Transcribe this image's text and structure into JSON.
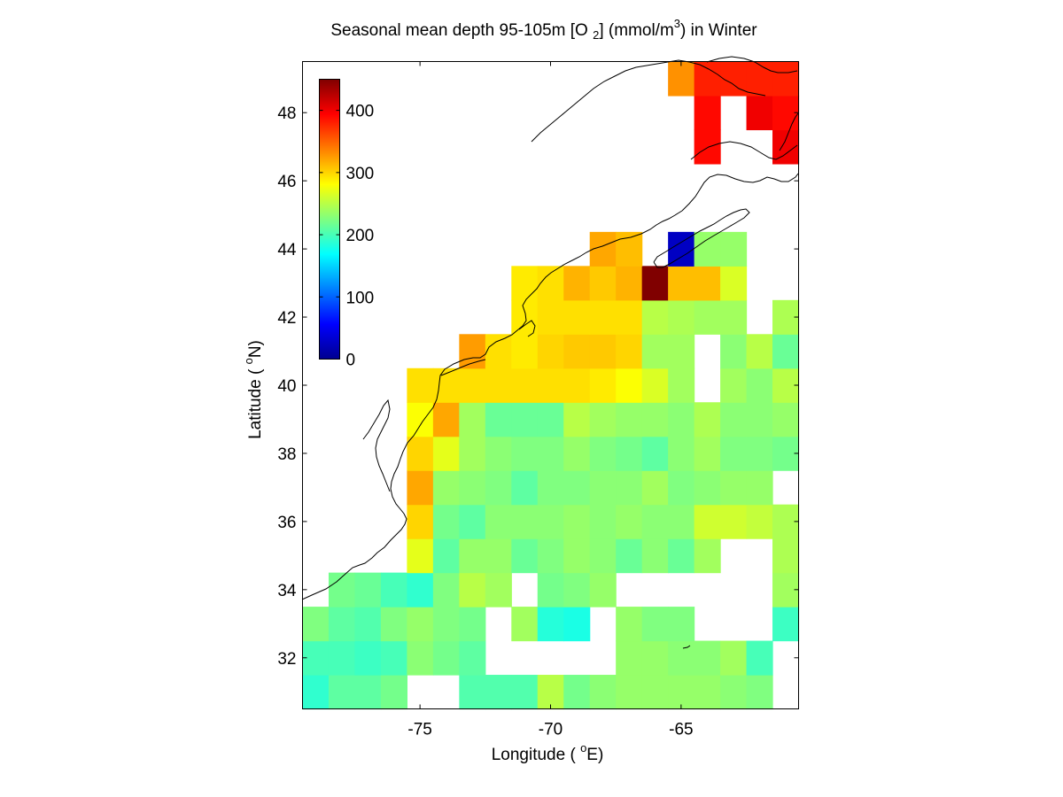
{
  "chart_data": {
    "type": "heatmap",
    "title": {
      "prefix": "Seasonal mean depth 95-105m [O ",
      "sub": "2",
      "middle": "] (mmol/m",
      "sup": "3",
      "suffix": ") in  Winter"
    },
    "xlabel": {
      "prefix": "Longitude ( ",
      "sup": "o",
      "suffix": "E)"
    },
    "ylabel": {
      "prefix": "Latitude ( ",
      "sup": "o",
      "suffix": "N)"
    },
    "xlim": [
      -79.5,
      -60.5
    ],
    "ylim": [
      30.5,
      49.5
    ],
    "x_ticks": [
      -75,
      -70,
      -65
    ],
    "y_ticks": [
      32,
      34,
      36,
      38,
      40,
      42,
      44,
      46,
      48
    ],
    "colorbar": {
      "min": 0,
      "max": 450,
      "ticks": [
        0,
        100,
        200,
        300,
        400
      ],
      "colormap": "jet"
    },
    "grid": {
      "lon_start": -79.5,
      "lat_start": 30.5,
      "cell_deg": 1.0
    },
    "rows": [
      {
        "lat": 31,
        "values": [
          190,
          210,
          210,
          220,
          null,
          null,
          205,
          205,
          205,
          250,
          220,
          230,
          235,
          235,
          235,
          235,
          230,
          225,
          null
        ]
      },
      {
        "lat": 32,
        "values": [
          200,
          200,
          195,
          200,
          230,
          220,
          210,
          null,
          null,
          null,
          null,
          null,
          235,
          235,
          230,
          230,
          240,
          200,
          null
        ]
      },
      {
        "lat": 33,
        "values": [
          225,
          210,
          205,
          225,
          235,
          225,
          220,
          null,
          240,
          185,
          180,
          null,
          235,
          225,
          225,
          null,
          null,
          null,
          195
        ]
      },
      {
        "lat": 34,
        "values": [
          null,
          220,
          215,
          200,
          190,
          225,
          250,
          240,
          null,
          220,
          225,
          235,
          null,
          null,
          null,
          null,
          null,
          null,
          240
        ]
      },
      {
        "lat": 35,
        "values": [
          null,
          null,
          null,
          null,
          270,
          210,
          235,
          235,
          215,
          225,
          235,
          230,
          215,
          230,
          215,
          240,
          null,
          null,
          245
        ]
      },
      {
        "lat": 36,
        "values": [
          null,
          null,
          null,
          null,
          300,
          220,
          210,
          230,
          230,
          230,
          235,
          230,
          235,
          230,
          230,
          260,
          260,
          255,
          245
        ]
      },
      {
        "lat": 37,
        "values": [
          null,
          null,
          null,
          null,
          320,
          235,
          230,
          225,
          210,
          225,
          225,
          230,
          230,
          240,
          225,
          230,
          235,
          235,
          null
        ]
      },
      {
        "lat": 38,
        "values": [
          null,
          null,
          null,
          null,
          300,
          270,
          240,
          230,
          225,
          225,
          235,
          225,
          220,
          210,
          230,
          240,
          225,
          225,
          220
        ]
      },
      {
        "lat": 39,
        "values": [
          null,
          null,
          null,
          null,
          280,
          320,
          240,
          215,
          215,
          215,
          250,
          240,
          235,
          235,
          230,
          245,
          230,
          230,
          235
        ]
      },
      {
        "lat": 40,
        "values": [
          null,
          null,
          null,
          null,
          295,
          295,
          295,
          295,
          295,
          295,
          295,
          290,
          280,
          265,
          240,
          null,
          240,
          230,
          250
        ]
      },
      {
        "lat": 41,
        "values": [
          null,
          null,
          null,
          null,
          null,
          null,
          325,
          295,
          290,
          300,
          305,
          305,
          300,
          240,
          240,
          null,
          230,
          250,
          215
        ]
      },
      {
        "lat": 42,
        "values": [
          null,
          null,
          null,
          null,
          null,
          null,
          null,
          null,
          290,
          295,
          295,
          295,
          295,
          250,
          245,
          240,
          240,
          null,
          245
        ]
      },
      {
        "lat": 43,
        "values": [
          null,
          null,
          null,
          null,
          null,
          null,
          null,
          null,
          290,
          295,
          315,
          305,
          315,
          450,
          310,
          310,
          265,
          null,
          null
        ]
      },
      {
        "lat": 44,
        "values": [
          null,
          null,
          null,
          null,
          null,
          null,
          null,
          null,
          null,
          null,
          null,
          320,
          310,
          null,
          30,
          235,
          235,
          null,
          null
        ]
      },
      {
        "lat": 47,
        "values": [
          null,
          null,
          null,
          null,
          null,
          null,
          null,
          null,
          null,
          null,
          null,
          null,
          null,
          null,
          null,
          390,
          null,
          null,
          400
        ]
      },
      {
        "lat": 48,
        "values": [
          null,
          null,
          null,
          null,
          null,
          null,
          null,
          null,
          null,
          null,
          null,
          null,
          null,
          null,
          null,
          390,
          null,
          400,
          390
        ]
      },
      {
        "lat": 49,
        "values": [
          null,
          null,
          null,
          null,
          null,
          null,
          null,
          null,
          null,
          null,
          null,
          null,
          null,
          null,
          330,
          380,
          380,
          380,
          380
        ]
      }
    ]
  }
}
